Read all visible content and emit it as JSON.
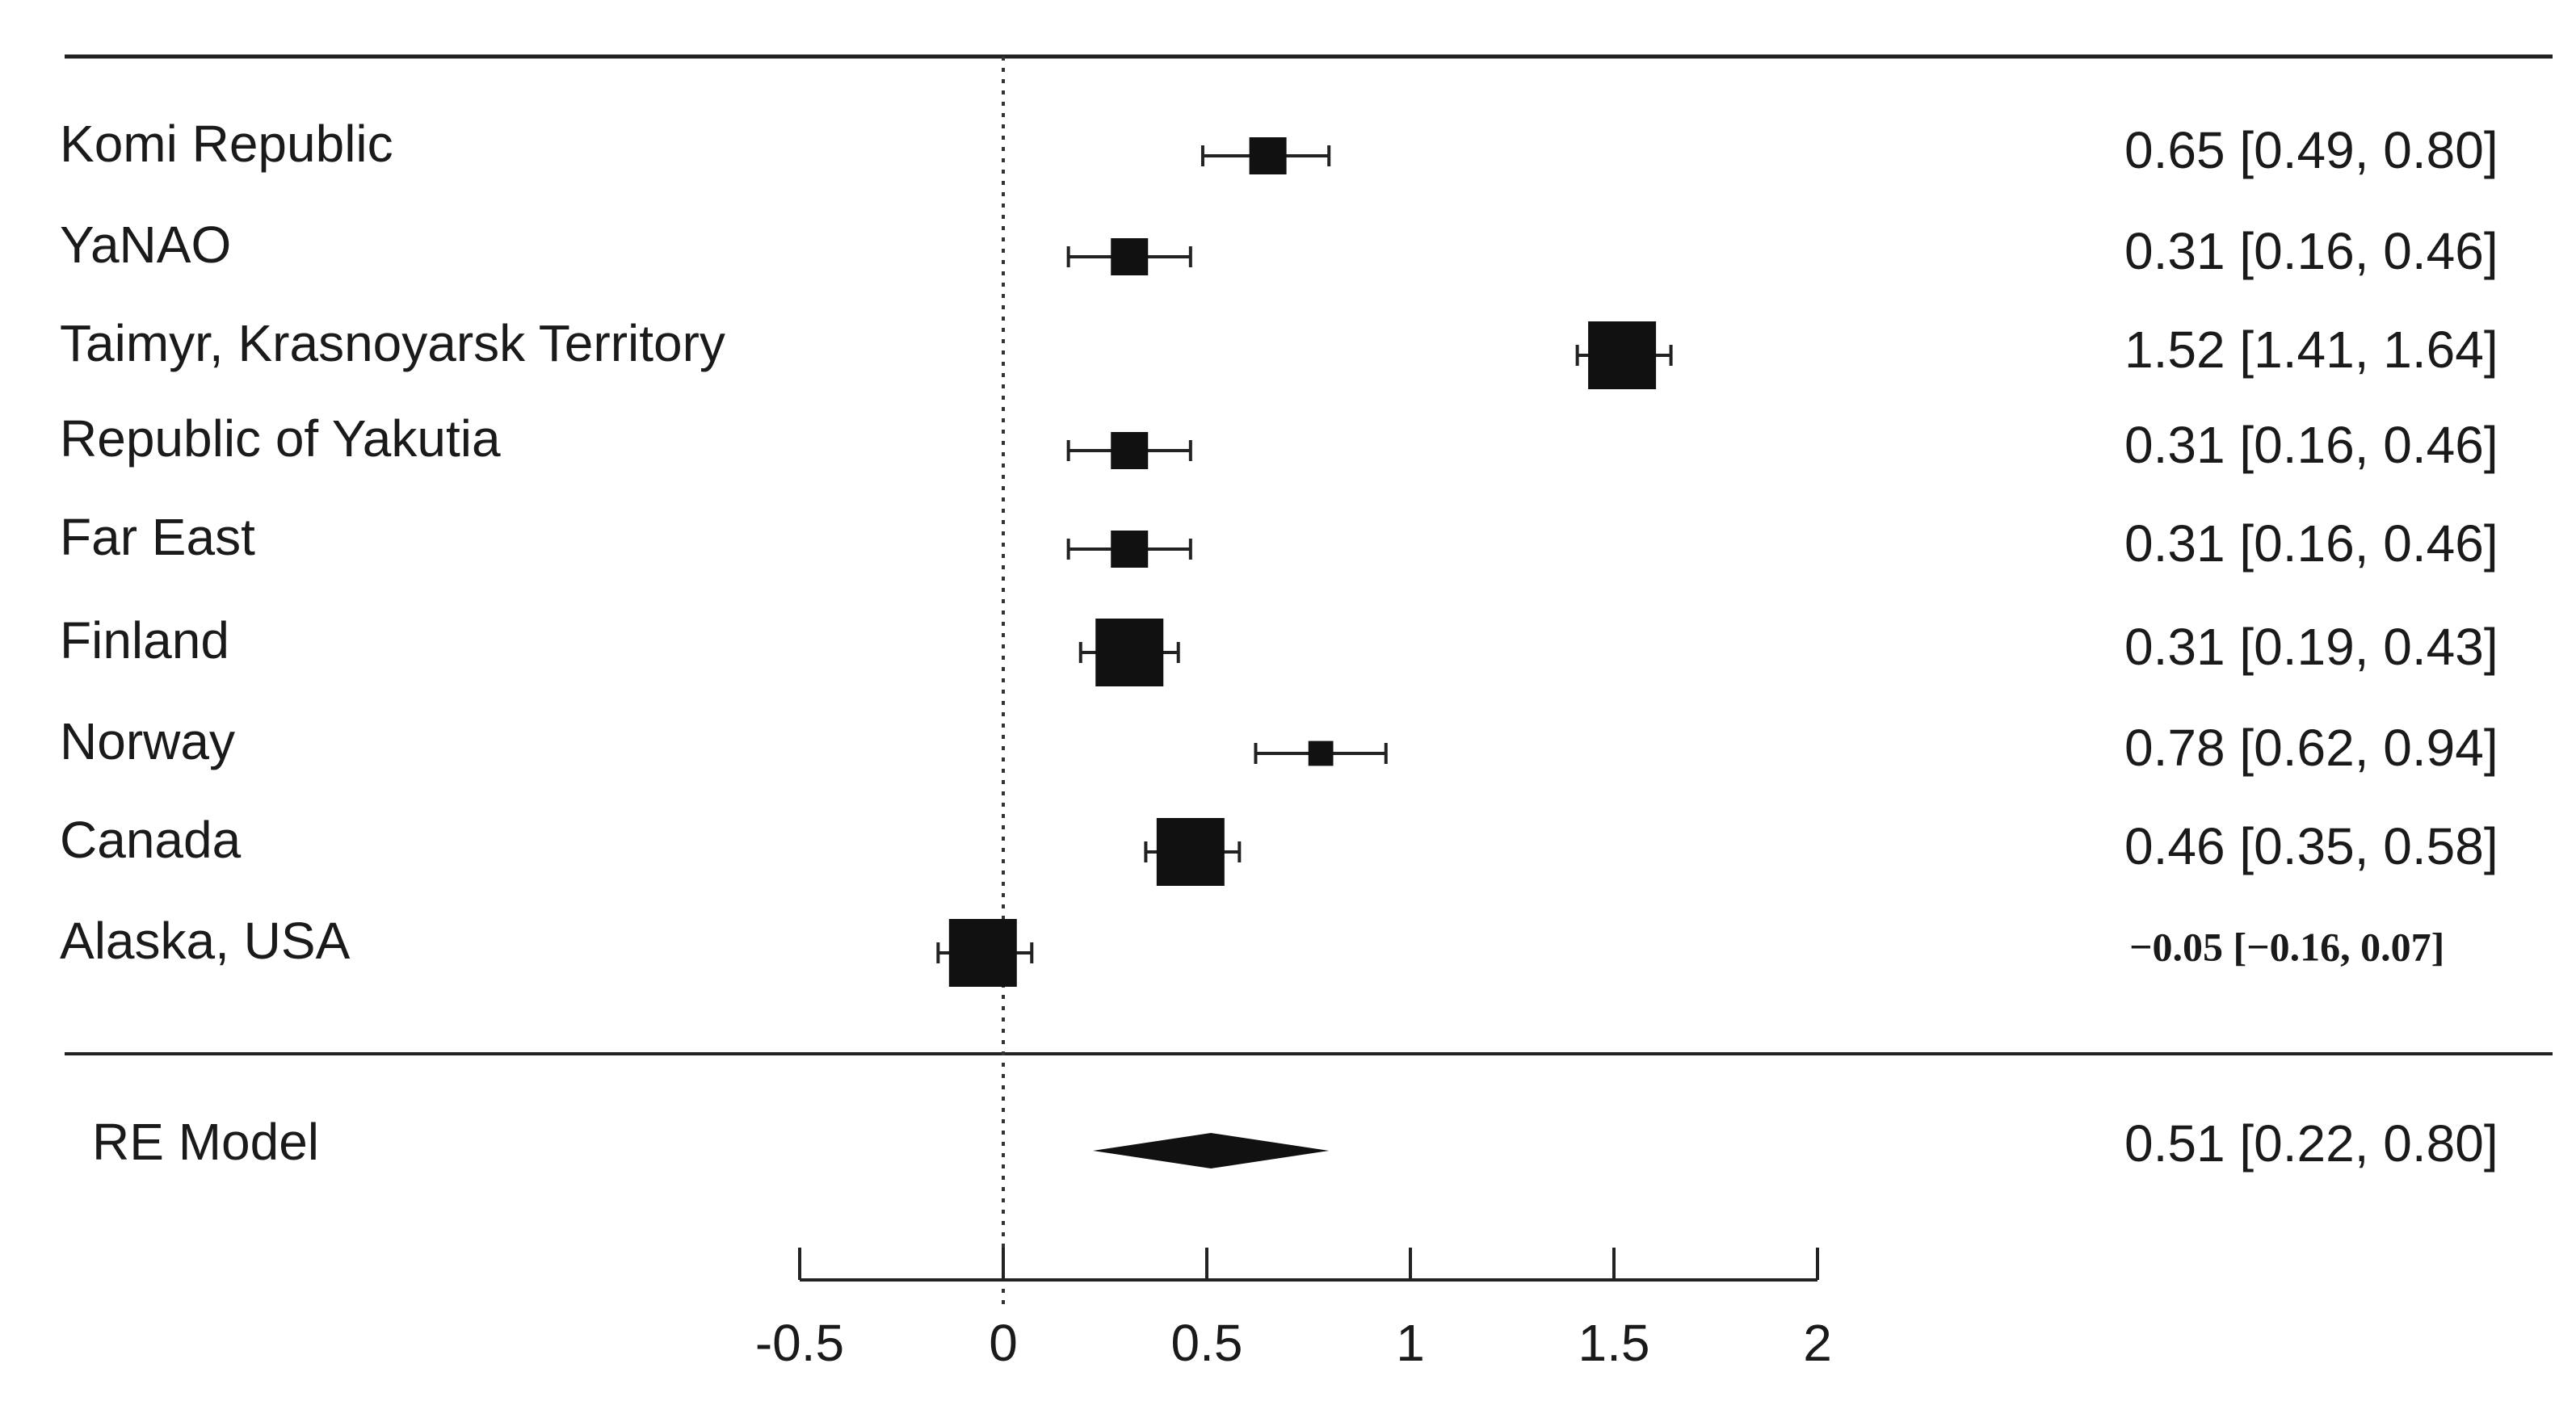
{
  "chart_data": {
    "type": "forest",
    "studies": [
      {
        "label": "Komi Republic",
        "estimate": 0.65,
        "lower": 0.49,
        "upper": 0.8,
        "ci_text": "0.65 [0.49, 0.80]",
        "weight": 1
      },
      {
        "label": "YaNAO",
        "estimate": 0.31,
        "lower": 0.16,
        "upper": 0.46,
        "ci_text": "0.31 [0.16, 0.46]",
        "weight": 1
      },
      {
        "label": "Taimyr, Krasnoyarsk Territory",
        "estimate": 1.52,
        "lower": 1.41,
        "upper": 1.64,
        "ci_text": "1.52 [1.41, 1.64]",
        "weight": 2
      },
      {
        "label": "Republic of Yakutia",
        "estimate": 0.31,
        "lower": 0.16,
        "upper": 0.46,
        "ci_text": "0.31 [0.16, 0.46]",
        "weight": 1
      },
      {
        "label": "Far East",
        "estimate": 0.31,
        "lower": 0.16,
        "upper": 0.46,
        "ci_text": "0.31 [0.16, 0.46]",
        "weight": 1
      },
      {
        "label": "Finland",
        "estimate": 0.31,
        "lower": 0.19,
        "upper": 0.43,
        "ci_text": "0.31 [0.19, 0.43]",
        "weight": 2
      },
      {
        "label": "Norway",
        "estimate": 0.78,
        "lower": 0.62,
        "upper": 0.94,
        "ci_text": "0.78 [0.62, 0.94]",
        "weight": 0.6
      },
      {
        "label": "Canada",
        "estimate": 0.46,
        "lower": 0.35,
        "upper": 0.58,
        "ci_text": "0.46 [0.35, 0.58]",
        "weight": 2
      },
      {
        "label": "Alaska, USA",
        "estimate": -0.05,
        "lower": -0.16,
        "upper": 0.07,
        "ci_text": "−0.05  [−0.16, 0.07]",
        "weight": 2
      }
    ],
    "summary": {
      "label": "RE Model",
      "estimate": 0.51,
      "lower": 0.22,
      "upper": 0.8,
      "ci_text": "0.51 [0.22, 0.80]"
    },
    "x_ticks": [
      -0.5,
      0,
      0.5,
      1,
      1.5,
      2
    ],
    "x_tick_labels": [
      "-0.5",
      "0",
      "0.5",
      "1",
      "1.5",
      "2"
    ],
    "xlim": [
      -0.5,
      2
    ],
    "reference_line": 0,
    "title": "",
    "xlabel": ""
  }
}
